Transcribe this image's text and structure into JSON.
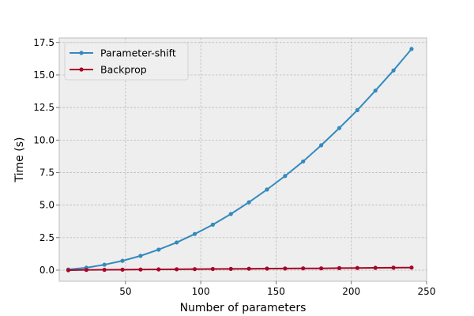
{
  "chart_data": {
    "type": "line",
    "title": "",
    "xlabel": "Number of parameters",
    "ylabel": "Time (s)",
    "xlim": [
      6,
      250
    ],
    "ylim": [
      -0.85,
      17.85
    ],
    "xticks": [
      50,
      100,
      150,
      200,
      250
    ],
    "yticks": [
      0.0,
      2.5,
      5.0,
      7.5,
      10.0,
      12.5,
      15.0,
      17.5
    ],
    "xtick_labels": [
      "50",
      "100",
      "150",
      "200",
      "250"
    ],
    "ytick_labels": [
      "0.0",
      "2.5",
      "5.0",
      "7.5",
      "10.0",
      "12.5",
      "15.0",
      "17.5"
    ],
    "grid": true,
    "legend_position": "upper-left",
    "x": [
      12,
      24,
      36,
      48,
      60,
      72,
      84,
      96,
      108,
      120,
      132,
      144,
      156,
      168,
      180,
      192,
      204,
      216,
      228,
      240
    ],
    "series": [
      {
        "name": "Parameter-shift",
        "color": "#348abd",
        "values": [
          0.05,
          0.19,
          0.42,
          0.72,
          1.1,
          1.58,
          2.13,
          2.78,
          3.5,
          4.32,
          5.22,
          6.2,
          7.24,
          8.36,
          9.6,
          10.92,
          12.3,
          13.8,
          15.35,
          17.0
        ]
      },
      {
        "name": "Backprop",
        "color": "#a60628",
        "values": [
          0.0,
          0.02,
          0.03,
          0.04,
          0.05,
          0.06,
          0.07,
          0.08,
          0.09,
          0.1,
          0.11,
          0.12,
          0.13,
          0.14,
          0.14,
          0.16,
          0.17,
          0.18,
          0.19,
          0.2
        ]
      }
    ]
  },
  "style": {
    "plot_background": "#eeeeee",
    "grid_color": "#b0b0b0",
    "axes_edge_color": "#bcbcbc",
    "legend_background": "#eeeeee",
    "legend_edge_color": "#cccccc"
  }
}
